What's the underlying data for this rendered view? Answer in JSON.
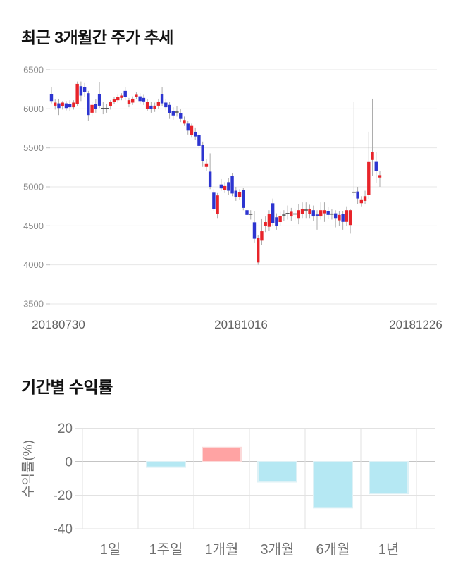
{
  "price_chart_title": "최근 3개월간 주가 추세",
  "returns_chart_title": "기간별 수익률",
  "chart_data": [
    {
      "type": "candlestick",
      "title": "최근 3개월간 주가 추세",
      "ylim": [
        3500,
        6500
      ],
      "y_ticks": [
        6500,
        6000,
        5500,
        5000,
        4500,
        4000,
        3500
      ],
      "x_labels": [
        "20180730",
        "20181016",
        "20181226"
      ],
      "grid": true,
      "colors": {
        "up": "#e8242a",
        "down": "#2d35d0",
        "wick": "#ababab",
        "doji": "#555555",
        "grid": "#e7e7e7",
        "tick_stub": "#c4c4c4",
        "y_tick_text": "#8a8a8a",
        "x_tick_text": "#5f5f5f"
      },
      "candles": [
        [
          6190,
          6280,
          6070,
          6100
        ],
        [
          6040,
          6120,
          5990,
          6080
        ],
        [
          6070,
          6130,
          5920,
          6010
        ],
        [
          6030,
          6100,
          5990,
          6080
        ],
        [
          6070,
          6100,
          5980,
          6010
        ],
        [
          6060,
          6110,
          5970,
          6020
        ],
        [
          6020,
          6110,
          5990,
          6080
        ],
        [
          6060,
          6350,
          6030,
          6320
        ],
        [
          6290,
          6350,
          6100,
          6170
        ],
        [
          6280,
          6330,
          6150,
          6220
        ],
        [
          6200,
          6230,
          5850,
          5920
        ],
        [
          5950,
          6090,
          5900,
          6050
        ],
        [
          6060,
          6120,
          5950,
          6000
        ],
        [
          6190,
          6340,
          6010,
          6040
        ],
        [
          6005,
          6090,
          5930,
          6005
        ],
        [
          6005,
          6060,
          5950,
          6005
        ],
        [
          6030,
          6110,
          5990,
          6090
        ],
        [
          6090,
          6150,
          6060,
          6120
        ],
        [
          6110,
          6180,
          6080,
          6150
        ],
        [
          6140,
          6200,
          6110,
          6170
        ],
        [
          6230,
          6280,
          6110,
          6150
        ],
        [
          6060,
          6140,
          6020,
          6110
        ],
        [
          6080,
          6160,
          6050,
          6130
        ],
        [
          6150,
          6210,
          6120,
          6180
        ],
        [
          6160,
          6200,
          6060,
          6100
        ],
        [
          6140,
          6180,
          6050,
          6095
        ],
        [
          6000,
          6120,
          5970,
          6090
        ],
        [
          6040,
          6090,
          5950,
          5995
        ],
        [
          5995,
          6080,
          5960,
          6040
        ],
        [
          6040,
          6130,
          6000,
          6090
        ],
        [
          6190,
          6280,
          6030,
          6070
        ],
        [
          6080,
          6120,
          5980,
          6020
        ],
        [
          6050,
          6090,
          5870,
          5945
        ],
        [
          5975,
          6020,
          5860,
          5915
        ],
        [
          5958,
          6030,
          5900,
          5958
        ],
        [
          5945,
          6000,
          5830,
          5870
        ],
        [
          5810,
          5900,
          5780,
          5856
        ],
        [
          5810,
          5850,
          5670,
          5720
        ],
        [
          5660,
          5810,
          5630,
          5780
        ],
        [
          5705,
          5760,
          5600,
          5645
        ],
        [
          5660,
          5700,
          5480,
          5525
        ],
        [
          5540,
          5580,
          5255,
          5330
        ],
        [
          5255,
          5360,
          5200,
          5300
        ],
        [
          5195,
          5430,
          4970,
          5000
        ],
        [
          4925,
          4970,
          4685,
          4715
        ],
        [
          4650,
          4920,
          4600,
          4890
        ],
        [
          5030,
          5100,
          4950,
          4980
        ],
        [
          4960,
          5060,
          4920,
          5010
        ],
        [
          5060,
          5110,
          4900,
          4950
        ],
        [
          5140,
          5180,
          4880,
          4915
        ],
        [
          4950,
          5000,
          4820,
          4870
        ],
        [
          4870,
          4970,
          4830,
          4930
        ],
        [
          4960,
          4990,
          4700,
          4730
        ],
        [
          4700,
          4750,
          4580,
          4640
        ],
        [
          4648,
          4700,
          4580,
          4648
        ],
        [
          4545,
          4684,
          4278,
          4335
        ],
        [
          4030,
          4380,
          4000,
          4347
        ],
        [
          4310,
          4594,
          4250,
          4430
        ],
        [
          4503,
          4620,
          4420,
          4548
        ],
        [
          4488,
          4700,
          4440,
          4654
        ],
        [
          4789,
          4850,
          4500,
          4533
        ],
        [
          4609,
          4660,
          4450,
          4494
        ],
        [
          4548,
          4680,
          4500,
          4623
        ],
        [
          4638,
          4700,
          4560,
          4638
        ],
        [
          4658,
          4760,
          4580,
          4658
        ],
        [
          4620,
          4730,
          4560,
          4680
        ],
        [
          4652,
          4720,
          4570,
          4652
        ],
        [
          4600,
          4780,
          4520,
          4700
        ],
        [
          4650,
          4800,
          4600,
          4720
        ],
        [
          4702,
          4800,
          4600,
          4702
        ],
        [
          4650,
          4770,
          4600,
          4720
        ],
        [
          4700,
          4760,
          4560,
          4620
        ],
        [
          4645,
          4700,
          4450,
          4630
        ],
        [
          4620,
          4800,
          4580,
          4700
        ],
        [
          4660,
          4800,
          4550,
          4700
        ],
        [
          4690,
          4740,
          4590,
          4640
        ],
        [
          4650,
          4710,
          4580,
          4650
        ],
        [
          4660,
          4700,
          4480,
          4600
        ],
        [
          4570,
          4690,
          4500,
          4640
        ],
        [
          4650,
          4690,
          4450,
          4550
        ],
        [
          4550,
          4750,
          4500,
          4700
        ],
        [
          4510,
          4720,
          4400,
          4700
        ],
        [
          4930,
          6090,
          4880,
          4930
        ],
        [
          4940,
          5000,
          4780,
          4850
        ],
        [
          4790,
          4880,
          4750,
          4830
        ],
        [
          4820,
          4950,
          4780,
          4880
        ],
        [
          4894,
          5706,
          4840,
          5318
        ],
        [
          5345,
          6130,
          5140,
          5450
        ],
        [
          5320,
          5450,
          5050,
          5200
        ],
        [
          5120,
          5200,
          5000,
          5150
        ]
      ]
    },
    {
      "type": "bar",
      "title": "기간별 수익률",
      "ylabel": "수익률(%)",
      "categories": [
        "1일",
        "1주일",
        "1개월",
        "3개월",
        "6개월",
        "1년"
      ],
      "values": [
        0,
        -3.2,
        8.5,
        -12,
        -27.5,
        -19
      ],
      "y_ticks": [
        20,
        0,
        -20,
        -40
      ],
      "ylim": [
        -40,
        20
      ],
      "grid": true,
      "colors": {
        "positive_fill": "#ffa3a3",
        "positive_stroke": "#fbd9d9",
        "negative_fill": "#b5e8f3",
        "negative_stroke": "#ddf1f6",
        "grid": "#e2e2e2",
        "zero_line": "#b0b0b0",
        "tick_text": "#707070"
      }
    }
  ]
}
